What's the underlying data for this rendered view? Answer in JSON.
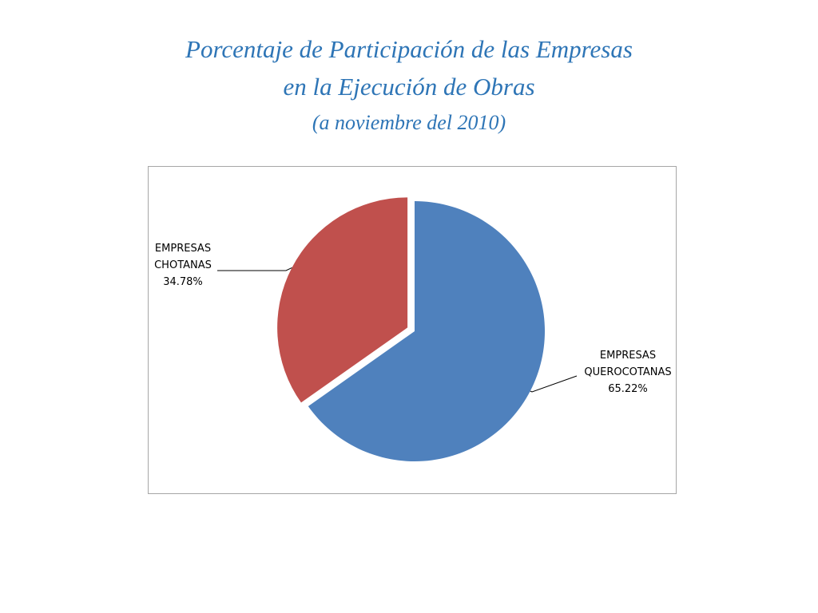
{
  "chart_data": {
    "type": "pie",
    "title_lines": [
      "Porcentaje de Participación de las Empresas",
      "en la Ejecución de Obras",
      "(a noviembre del 2010)"
    ],
    "slices": [
      {
        "label_line1": "EMPRESAS",
        "label_line2": "QUEROCOTANAS",
        "value_label": "65.22%",
        "value": 65.22,
        "color": "#4f81bd",
        "exploded": false
      },
      {
        "label_line1": "EMPRESAS",
        "label_line2": "CHOTANAS",
        "value_label": "34.78%",
        "value": 34.78,
        "color": "#c0504d",
        "exploded": true
      }
    ],
    "start_angle_deg": 0,
    "direction": "clockwise",
    "legend": "none"
  }
}
